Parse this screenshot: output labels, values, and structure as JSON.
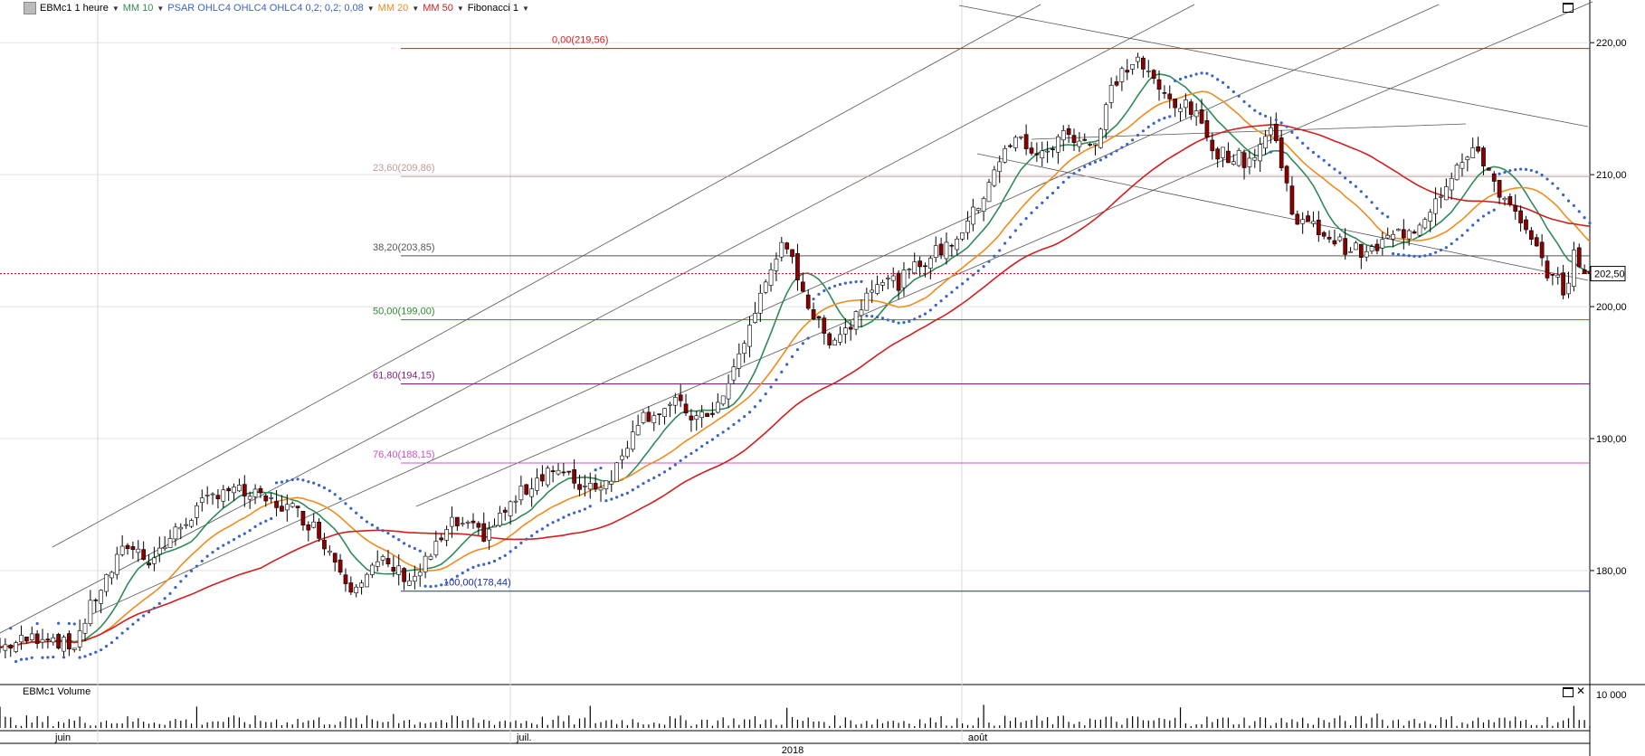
{
  "toolbar": {
    "symbol": "EBMc1 1 heure",
    "indicators": [
      {
        "label": "MM 10",
        "color": "#2e8b57"
      },
      {
        "label": "PSAR OHLC4 OHLC4 OHLC4  0,2; 0,2; 0,08",
        "color": "#3a63c8"
      },
      {
        "label": "MM 20",
        "color": "#f08c1e"
      },
      {
        "label": "MM 50",
        "color": "#d11f1f"
      },
      {
        "label": "Fibonacci 1",
        "color": "#000000"
      }
    ]
  },
  "volume_panel": {
    "title": "EBMc1 Volume",
    "scale_label": "10 000"
  },
  "last_price_label": "202,50",
  "colors": {
    "up": "#ffffff",
    "down": "#8b0000",
    "mm10": "#2e8b57",
    "mm20": "#f08c1e",
    "mm50": "#d11f1f",
    "psar": "#3a63c8",
    "last": "#d11f1f"
  },
  "chart_data": {
    "type": "candlestick",
    "ylim": [
      171.5,
      222
    ],
    "y_ticks": [
      "220,00",
      "210,00",
      "200,00",
      "190,00",
      "180,00"
    ],
    "y_tick_values": [
      220,
      210,
      200,
      190,
      180
    ],
    "x_labels": [
      {
        "label": "juin",
        "x": 0.0
      },
      {
        "label": "juil.",
        "x": 0.2595
      },
      {
        "label": "août",
        "x": 0.5435
      }
    ],
    "year_label": "2018",
    "fibonacci": [
      {
        "label": "0,00(219,56)",
        "value": 219.56,
        "color": "#d11f1f"
      },
      {
        "label": "23,60(209,86)",
        "value": 209.86,
        "color": "#c09a9a"
      },
      {
        "label": "38,20(203,85)",
        "value": 203.85,
        "color": "#555555"
      },
      {
        "label": "50,00(199,00)",
        "value": 199.0,
        "color": "#2e8b2e"
      },
      {
        "label": "61,80(194,15)",
        "value": 194.15,
        "color": "#7b1f7b"
      },
      {
        "label": "76,40(188,15)",
        "value": 188.15,
        "color": "#d04fd0"
      },
      {
        "label": "100,00(178,44)",
        "value": 178.44,
        "color": "#1f2f8f"
      }
    ],
    "last_price": 202.5,
    "price_path": [
      [
        0.0,
        174.2
      ],
      [
        0.03,
        175.2
      ],
      [
        0.045,
        174.0
      ],
      [
        0.06,
        178.0
      ],
      [
        0.08,
        182.0
      ],
      [
        0.095,
        180.8
      ],
      [
        0.12,
        184.2
      ],
      [
        0.14,
        186.3
      ],
      [
        0.16,
        185.6
      ],
      [
        0.185,
        184.6
      ],
      [
        0.2,
        183.0
      ],
      [
        0.22,
        178.9
      ],
      [
        0.24,
        180.6
      ],
      [
        0.26,
        179.3
      ],
      [
        0.285,
        183.6
      ],
      [
        0.305,
        182.7
      ],
      [
        0.325,
        185.5
      ],
      [
        0.345,
        187.8
      ],
      [
        0.365,
        186.5
      ],
      [
        0.38,
        186.6
      ],
      [
        0.39,
        188.2
      ],
      [
        0.4,
        191.5
      ],
      [
        0.425,
        192.6
      ],
      [
        0.44,
        191.3
      ],
      [
        0.455,
        193.0
      ],
      [
        0.47,
        198.0
      ],
      [
        0.49,
        204.6
      ],
      [
        0.5,
        203.1
      ],
      [
        0.51,
        199.6
      ],
      [
        0.52,
        197.5
      ],
      [
        0.535,
        198.6
      ],
      [
        0.55,
        202.2
      ],
      [
        0.565,
        201.8
      ],
      [
        0.58,
        203.4
      ],
      [
        0.6,
        205.0
      ],
      [
        0.615,
        207.5
      ],
      [
        0.625,
        210.5
      ],
      [
        0.64,
        212.8
      ],
      [
        0.655,
        211.3
      ],
      [
        0.67,
        213.2
      ],
      [
        0.69,
        212.3
      ],
      [
        0.7,
        217.0
      ],
      [
        0.715,
        218.8
      ],
      [
        0.73,
        216.2
      ],
      [
        0.75,
        214.8
      ],
      [
        0.765,
        211.8
      ],
      [
        0.785,
        211.0
      ],
      [
        0.8,
        213.6
      ],
      [
        0.815,
        206.5
      ],
      [
        0.83,
        205.8
      ],
      [
        0.845,
        204.6
      ],
      [
        0.86,
        203.9
      ],
      [
        0.875,
        205.3
      ],
      [
        0.89,
        206.0
      ],
      [
        0.9,
        207.6
      ],
      [
        0.915,
        210.5
      ],
      [
        0.93,
        211.8
      ],
      [
        0.945,
        208.3
      ],
      [
        0.96,
        205.5
      ],
      [
        0.975,
        202.4
      ],
      [
        0.985,
        201.2
      ],
      [
        0.99,
        203.8
      ],
      [
        1.0,
        202.5
      ]
    ]
  }
}
